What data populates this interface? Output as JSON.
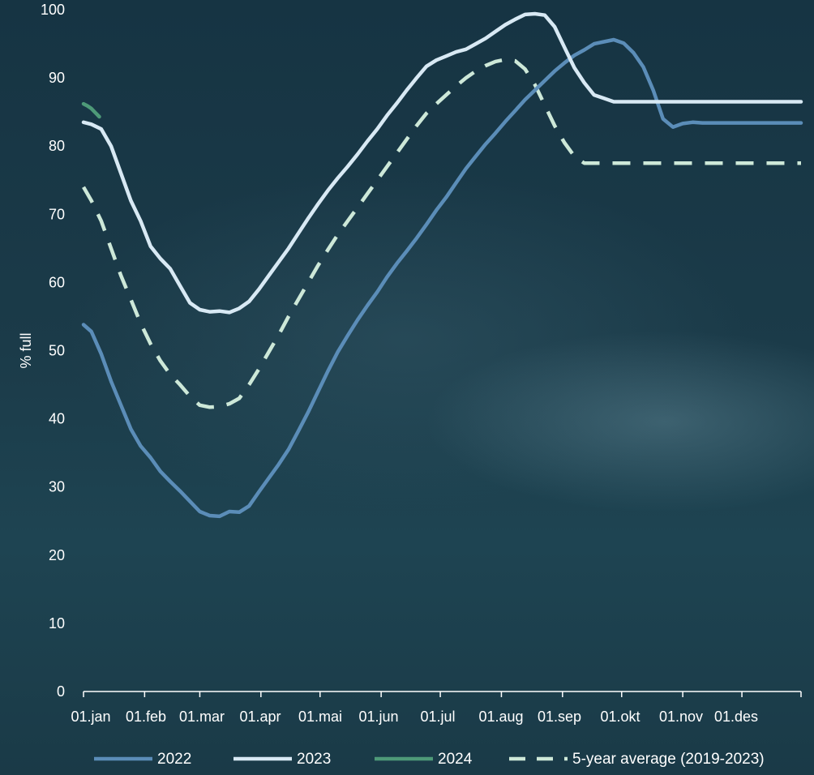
{
  "chart_data": {
    "type": "line",
    "xlabel": "",
    "ylabel": "% full",
    "ylim": [
      0,
      100
    ],
    "y_ticks": [
      0,
      10,
      20,
      30,
      40,
      50,
      60,
      70,
      80,
      90,
      100
    ],
    "x_ticks": [
      "01.jan",
      "01.feb",
      "01.mar",
      "01.apr",
      "01.mai",
      "01.jun",
      "01.jul",
      "01.aug",
      "01.sep",
      "01.okt",
      "01.nov",
      "01.des"
    ],
    "x_unit": "day of year",
    "xlim": [
      1,
      365
    ],
    "grid": false,
    "legend_position": "bottom",
    "series": [
      {
        "name": "2022",
        "color": "#5b8db8",
        "dash": "solid",
        "x": [
          1,
          5,
          10,
          15,
          20,
          25,
          30,
          35,
          40,
          45,
          50,
          55,
          60,
          65,
          70,
          75,
          80,
          85,
          90,
          95,
          100,
          105,
          110,
          115,
          120,
          125,
          130,
          135,
          140,
          145,
          150,
          155,
          160,
          165,
          170,
          175,
          180,
          185,
          190,
          195,
          200,
          205,
          210,
          215,
          220,
          225,
          230,
          235,
          240,
          245,
          250,
          255,
          260,
          265,
          270,
          275,
          280,
          285,
          290,
          295,
          300,
          305,
          310,
          315,
          320,
          325,
          330,
          335,
          340,
          345,
          350,
          355,
          360,
          365
        ],
        "values": [
          53.8,
          52.8,
          49.5,
          45.5,
          42.0,
          38.5,
          36.0,
          34.3,
          32.3,
          30.8,
          29.4,
          27.9,
          26.4,
          25.8,
          25.7,
          26.4,
          26.3,
          27.2,
          29.3,
          31.3,
          33.3,
          35.5,
          38.2,
          41.0,
          44.0,
          47.0,
          49.8,
          52.2,
          54.5,
          56.6,
          58.6,
          60.8,
          62.8,
          64.6,
          66.5,
          68.5,
          70.6,
          72.5,
          74.6,
          76.7,
          78.5,
          80.3,
          81.9,
          83.6,
          85.2,
          86.8,
          88.2,
          89.6,
          91.0,
          92.2,
          93.3,
          94.1,
          95.0,
          95.3,
          95.6,
          95.1,
          93.7,
          91.6,
          88.2,
          84.0,
          82.8,
          83.3,
          83.5,
          83.4,
          83.4,
          83.4,
          83.4,
          83.4,
          83.4,
          83.4,
          83.4,
          83.4,
          83.4,
          83.4
        ]
      },
      {
        "name": "2023",
        "color": "#d8e9f4",
        "dash": "solid",
        "x": [
          1,
          5,
          10,
          15,
          20,
          25,
          30,
          35,
          40,
          45,
          50,
          55,
          60,
          65,
          70,
          75,
          80,
          85,
          90,
          95,
          100,
          105,
          110,
          115,
          120,
          125,
          130,
          135,
          140,
          145,
          150,
          155,
          160,
          165,
          170,
          175,
          180,
          185,
          190,
          195,
          200,
          205,
          210,
          215,
          220,
          225,
          230,
          235,
          240,
          245,
          250,
          255,
          260,
          265,
          270,
          275,
          280,
          285,
          290,
          295,
          300,
          305,
          310,
          315,
          320,
          325,
          330,
          335,
          340,
          345,
          350,
          355,
          360,
          365
        ],
        "values": [
          83.5,
          83.2,
          82.5,
          80.0,
          76.0,
          72.0,
          69.0,
          65.3,
          63.5,
          62.0,
          59.5,
          57.0,
          56.0,
          55.7,
          55.8,
          55.6,
          56.2,
          57.2,
          59.0,
          61.0,
          63.0,
          65.0,
          67.2,
          69.4,
          71.5,
          73.5,
          75.3,
          77.0,
          78.8,
          80.7,
          82.5,
          84.5,
          86.3,
          88.2,
          90.0,
          91.7,
          92.6,
          93.2,
          93.8,
          94.2,
          95.0,
          95.8,
          96.8,
          97.8,
          98.6,
          99.3,
          99.4,
          99.2,
          97.5,
          94.5,
          91.5,
          89.3,
          87.5,
          87.0,
          86.5,
          86.5,
          86.5,
          86.5,
          86.5,
          86.5,
          86.5,
          86.5,
          86.5,
          86.5,
          86.5,
          86.5,
          86.5,
          86.5,
          86.5,
          86.5,
          86.5,
          86.5,
          86.5,
          86.5
        ]
      },
      {
        "name": "2024",
        "color": "#4e9a78",
        "dash": "solid",
        "x": [
          1,
          3,
          5,
          7,
          9
        ],
        "values": [
          86.2,
          85.9,
          85.5,
          84.9,
          84.3
        ]
      },
      {
        "name": "5-year average (2019-2023)",
        "color": "#cde8d8",
        "dash": "dashed",
        "x": [
          1,
          5,
          10,
          15,
          20,
          25,
          30,
          35,
          40,
          45,
          50,
          55,
          60,
          65,
          70,
          75,
          80,
          85,
          90,
          95,
          100,
          105,
          110,
          115,
          120,
          125,
          130,
          135,
          140,
          145,
          150,
          155,
          160,
          165,
          170,
          175,
          180,
          185,
          190,
          195,
          200,
          205,
          210,
          215,
          220,
          225,
          230,
          235,
          240,
          245,
          250,
          255,
          260,
          265,
          270,
          275,
          280,
          285,
          290,
          295,
          300,
          305,
          310,
          315,
          320,
          325,
          330,
          335,
          340,
          345,
          350,
          355,
          360,
          365
        ],
        "values": [
          74.0,
          72.0,
          69.0,
          65.0,
          61.0,
          57.5,
          54.0,
          51.0,
          48.5,
          46.5,
          45.0,
          43.3,
          42.0,
          41.7,
          41.8,
          42.2,
          43.0,
          45.0,
          47.3,
          49.8,
          52.3,
          55.0,
          57.5,
          60.0,
          62.5,
          64.8,
          67.0,
          69.0,
          71.0,
          73.0,
          75.0,
          77.0,
          79.0,
          81.0,
          83.0,
          84.8,
          86.2,
          87.5,
          88.8,
          90.0,
          91.0,
          91.8,
          92.4,
          92.7,
          92.5,
          91.3,
          89.0,
          86.0,
          83.0,
          80.5,
          78.5,
          77.5,
          77.5,
          77.5,
          77.5,
          77.5,
          77.5,
          77.5,
          77.5,
          77.5,
          77.5,
          77.5,
          77.5,
          77.5,
          77.5,
          77.5,
          77.5,
          77.5,
          77.5,
          77.5,
          77.5,
          77.5,
          77.5,
          77.5
        ]
      }
    ]
  }
}
